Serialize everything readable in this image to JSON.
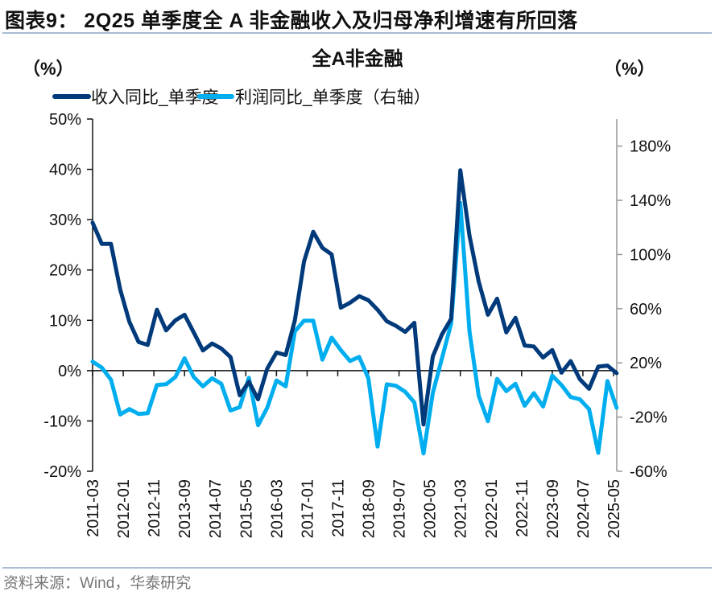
{
  "figure": {
    "title": "图表9：  2Q25 单季度全 A 非金融收入及归母净利增速有所回落",
    "source": "资料来源：Wind，华泰研究"
  },
  "chart_data": {
    "type": "line",
    "title": "全A非金融",
    "ylabel_left": "（%）",
    "ylabel_right": "（%）",
    "colors": {
      "revenue": "#003a7a",
      "profit": "#00aeef",
      "separator": "#a9bcd2"
    },
    "legend_placement": "top",
    "grid": false,
    "ylim_left": [
      -20,
      50
    ],
    "yticks_left": [
      50,
      40,
      30,
      20,
      10,
      0,
      -10,
      -20
    ],
    "yticklabels_left": [
      "50%",
      "40%",
      "30%",
      "20%",
      "10%",
      "0%",
      "-10%",
      "-20%"
    ],
    "ylim_right": [
      -60,
      200
    ],
    "yticks_right": [
      180,
      140,
      100,
      60,
      20,
      -20,
      -60
    ],
    "yticklabels_right": [
      "180%",
      "140%",
      "100%",
      "60%",
      "20%",
      "-20%",
      "-60%"
    ],
    "xticklabels": [
      "2011-03",
      "2012-01",
      "2012-11",
      "2013-09",
      "2014-07",
      "2015-05",
      "2016-03",
      "2017-01",
      "2017-11",
      "2018-09",
      "2019-07",
      "2020-05",
      "2021-03",
      "2022-01",
      "2022-11",
      "2023-09",
      "2024-07",
      "2025-05"
    ],
    "x_start": "2011-03",
    "x_end": "2025-06",
    "x_frequency": "quarterly",
    "series": [
      {
        "name": "收入同比_单季度",
        "axis": "left",
        "values": [
          29.4,
          25.2,
          25.2,
          16.1,
          9.7,
          5.7,
          5.1,
          12.1,
          8.0,
          10.0,
          11.1,
          7.6,
          4.0,
          5.4,
          4.4,
          2.7,
          -4.9,
          -2.2,
          -5.7,
          0.4,
          3.6,
          3.1,
          10.0,
          21.7,
          27.6,
          24.4,
          23.1,
          12.5,
          13.5,
          14.8,
          14.0,
          12.1,
          9.8,
          8.9,
          7.7,
          9.5,
          -10.7,
          2.8,
          7.2,
          10.3,
          39.8,
          26.8,
          17.7,
          11.1,
          14.3,
          7.6,
          10.5,
          5.0,
          4.8,
          2.6,
          4.1,
          -0.4,
          1.9,
          -1.7,
          -3.6,
          0.8,
          1.0,
          -0.5
        ]
      },
      {
        "name": "利润同比_单季度（右轴）",
        "axis": "right",
        "values": [
          20.9,
          16.5,
          7.6,
          -18.1,
          -14.1,
          -17.7,
          -17.1,
          3.7,
          4.2,
          9.6,
          23.4,
          9.6,
          2.7,
          8.6,
          4.6,
          -15.1,
          -12.7,
          9.0,
          -26.0,
          -13.1,
          7.0,
          2.7,
          43.2,
          51.1,
          51.1,
          22.4,
          38.6,
          29.4,
          21.4,
          24.4,
          8.6,
          -41.8,
          4.2,
          3.1,
          -1.3,
          -9.2,
          -46.8,
          -2.3,
          23.4,
          49.1,
          138.0,
          43.2,
          -4.2,
          -23.0,
          8.2,
          -0.9,
          4.6,
          -11.6,
          -2.3,
          -12.2,
          10.6,
          3.7,
          -5.2,
          -6.8,
          -14.1,
          -46.4,
          6.6,
          -13.1
        ]
      }
    ]
  }
}
